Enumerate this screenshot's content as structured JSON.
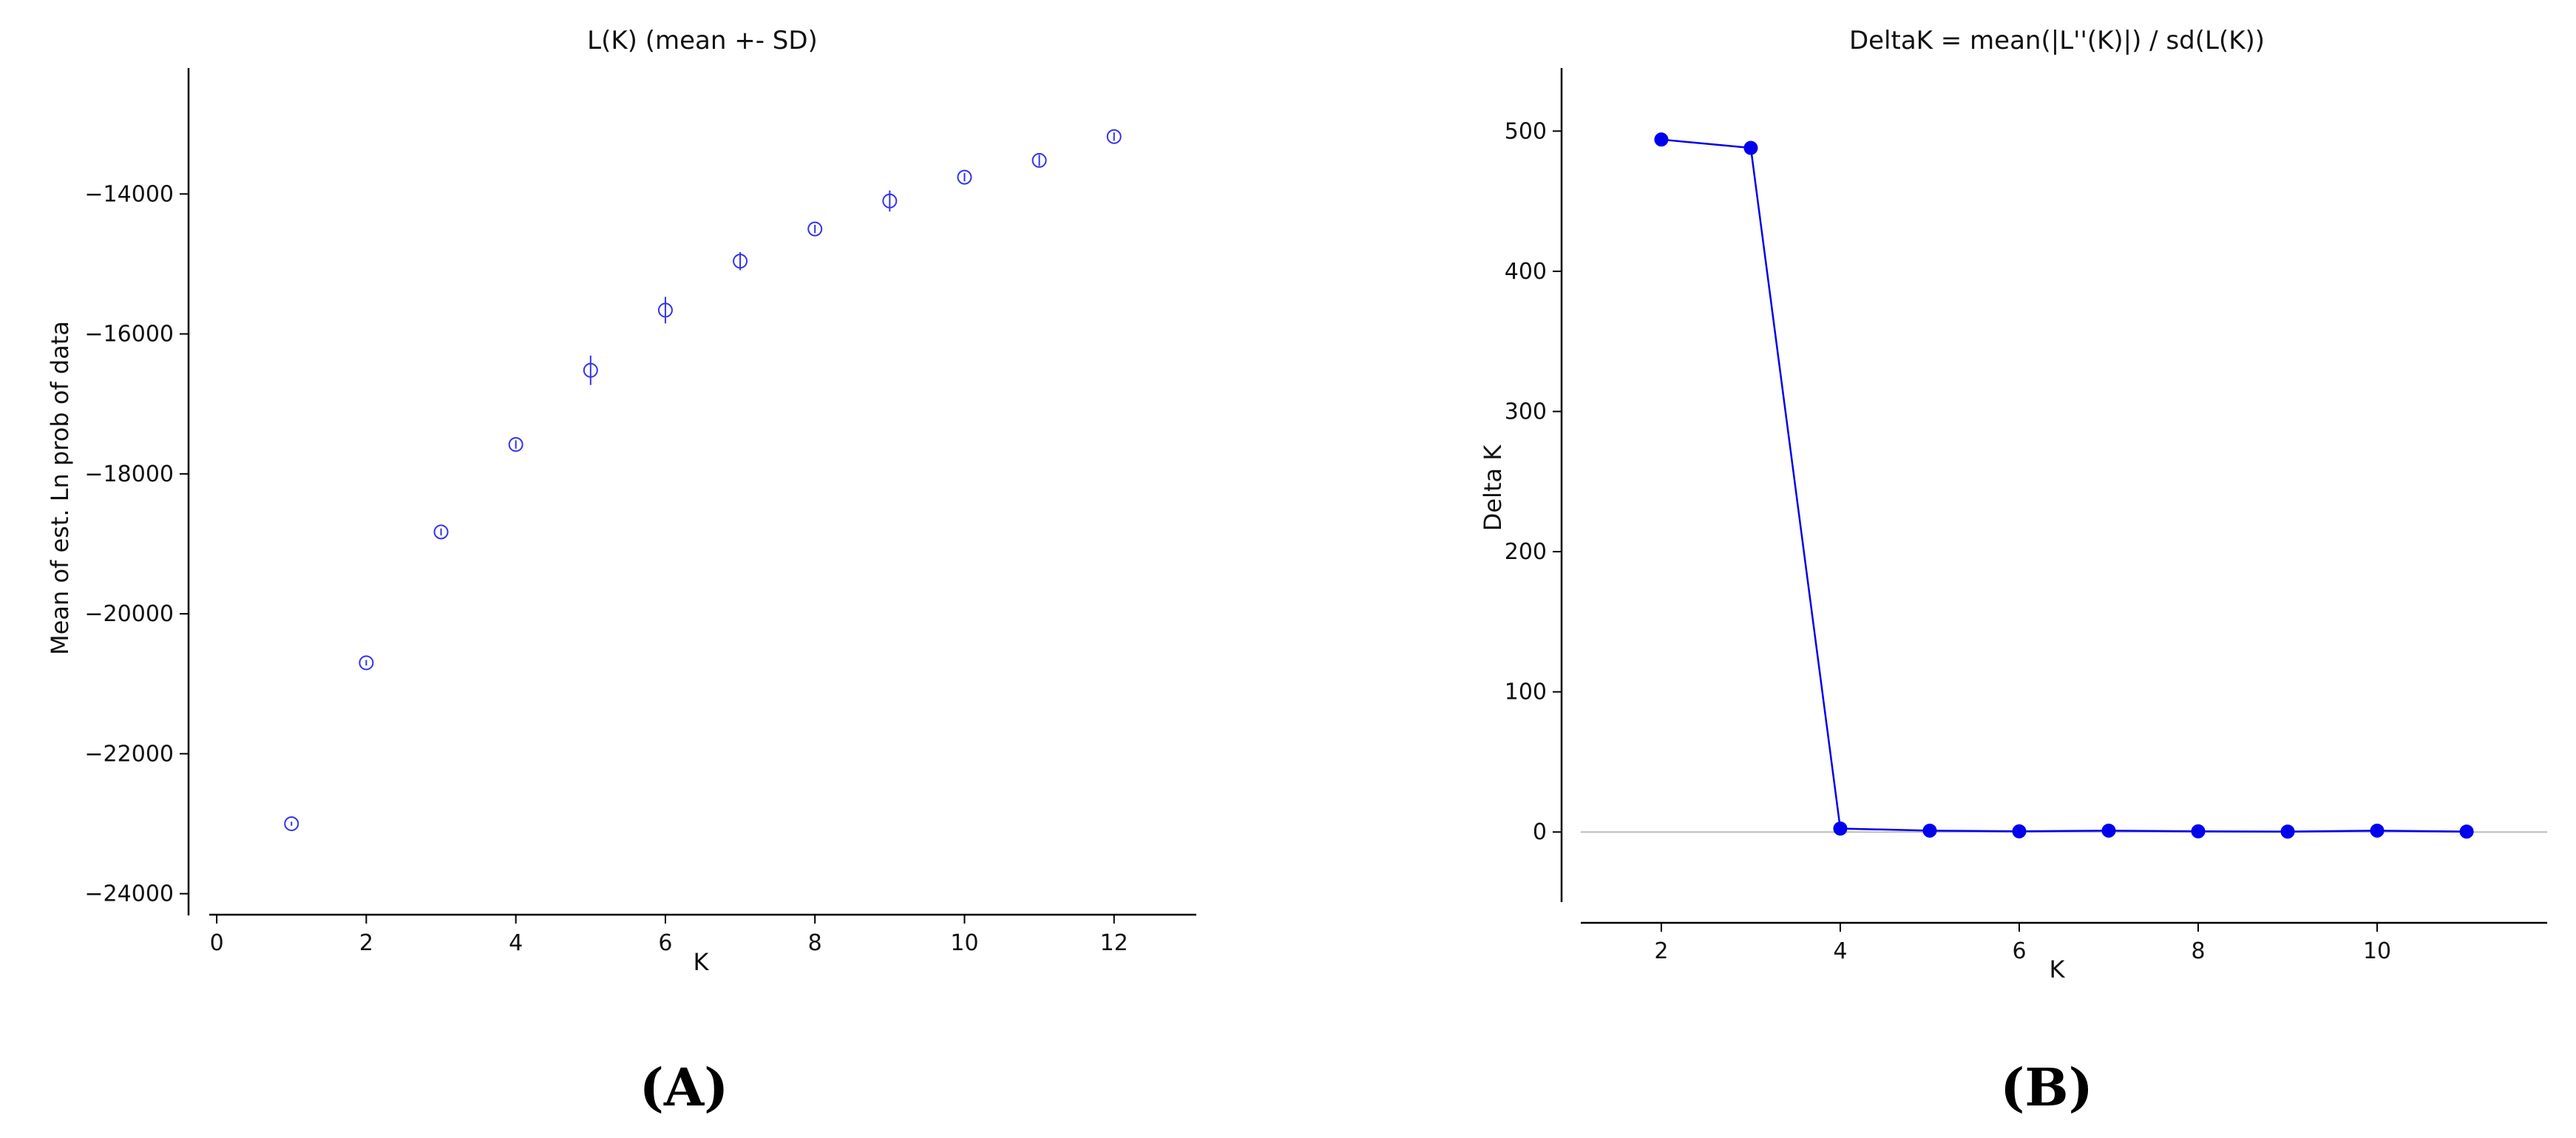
{
  "chart_data": [
    {
      "type": "scatter",
      "title": "L(K) (mean +- SD)",
      "xlabel": "K",
      "ylabel": "Mean of est. Ln prob of data",
      "xlim": [
        -0.1,
        13.1
      ],
      "ylim": [
        -24300,
        -12200
      ],
      "xticks": [
        0,
        2,
        4,
        6,
        8,
        10,
        12
      ],
      "yticks": [
        -24000,
        -22000,
        -20000,
        -18000,
        -16000,
        -14000
      ],
      "xtick_labels": [
        "0",
        "2",
        "4",
        "6",
        "8",
        "10",
        "12"
      ],
      "ytick_labels": [
        "−24000",
        "−22000",
        "−20000",
        "−18000",
        "−16000",
        "−14000"
      ],
      "marker": "open-circle",
      "color": "#3333ee",
      "grid": false,
      "panel_label": "(A)",
      "points": [
        {
          "x": 1,
          "y": -23000,
          "sd": 30
        },
        {
          "x": 2,
          "y": -20700,
          "sd": 40
        },
        {
          "x": 3,
          "y": -18830,
          "sd": 50
        },
        {
          "x": 4,
          "y": -17580,
          "sd": 60
        },
        {
          "x": 5,
          "y": -16520,
          "sd": 210
        },
        {
          "x": 6,
          "y": -15660,
          "sd": 190
        },
        {
          "x": 7,
          "y": -14960,
          "sd": 130
        },
        {
          "x": 8,
          "y": -14500,
          "sd": 60
        },
        {
          "x": 9,
          "y": -14100,
          "sd": 150
        },
        {
          "x": 10,
          "y": -13760,
          "sd": 60
        },
        {
          "x": 11,
          "y": -13520,
          "sd": 80
        },
        {
          "x": 12,
          "y": -13180,
          "sd": 60
        }
      ]
    },
    {
      "type": "line",
      "title": "DeltaK = mean(|L''(K)|) / sd(L(K))",
      "xlabel": "K",
      "ylabel": "Delta K",
      "xlim": [
        1.1,
        11.9
      ],
      "ylim": [
        -50,
        545
      ],
      "xticks": [
        2,
        4,
        6,
        8,
        10
      ],
      "yticks": [
        0,
        100,
        200,
        300,
        400,
        500
      ],
      "xtick_labels": [
        "2",
        "4",
        "6",
        "8",
        "10"
      ],
      "ytick_labels": [
        "0",
        "100",
        "200",
        "300",
        "400",
        "500"
      ],
      "marker": "filled-circle",
      "color": "#0000ee",
      "zero_line": true,
      "grid": false,
      "panel_label": "(B)",
      "x": [
        2,
        3,
        4,
        5,
        6,
        7,
        8,
        9,
        10,
        11
      ],
      "values": [
        494,
        488,
        2.5,
        1,
        0.5,
        1,
        0.5,
        0.3,
        1,
        0.3
      ]
    }
  ]
}
